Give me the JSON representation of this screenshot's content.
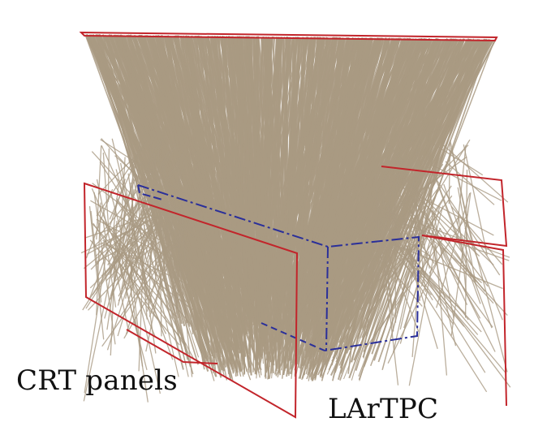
{
  "figure": {
    "labels": {
      "crt_panels": "CRT panels",
      "lartpc": "LArTPC"
    },
    "colors": {
      "tracks": "#a99a83",
      "crt_panel_outline": "#c2252b",
      "lartpc_outline": "#2a2f9a",
      "background": "#ffffff"
    }
  }
}
